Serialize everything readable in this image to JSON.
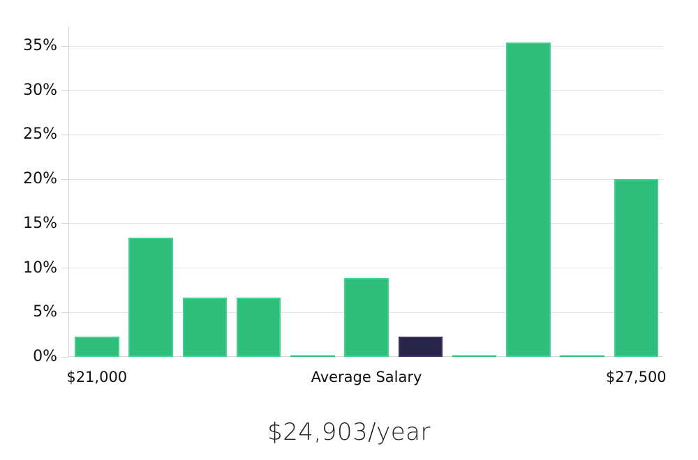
{
  "chart_data": {
    "type": "bar",
    "title": "$24,903/year",
    "values": [
      2.3,
      13.4,
      6.7,
      6.7,
      0.15,
      8.9,
      2.3,
      0.15,
      35.4,
      0.15,
      20.0
    ],
    "highlight_index": 6,
    "x_ticks": [
      {
        "bar_index": 0,
        "label": "$21,000"
      },
      {
        "bar_index": 5,
        "label": "Average Salary"
      },
      {
        "bar_index": 10,
        "label": "$27,500"
      }
    ],
    "y_tick_values": [
      0,
      5,
      10,
      15,
      20,
      25,
      30,
      35
    ],
    "y_tick_labels": [
      "0%",
      "5%",
      "10%",
      "15%",
      "20%",
      "25%",
      "30%",
      "35%"
    ],
    "ylim": [
      0,
      37.2
    ],
    "grid": true,
    "legend": false,
    "xlabel": "",
    "ylabel": "",
    "colors": {
      "bar": "#2ebd7b",
      "bar_stroke": "#45d091",
      "highlight": "#282348",
      "highlight_stroke": "#3a3361",
      "grid": "#e5e5e5",
      "axis": "#d4d4d4",
      "tick_label": "#111111",
      "title": "#222222"
    }
  }
}
